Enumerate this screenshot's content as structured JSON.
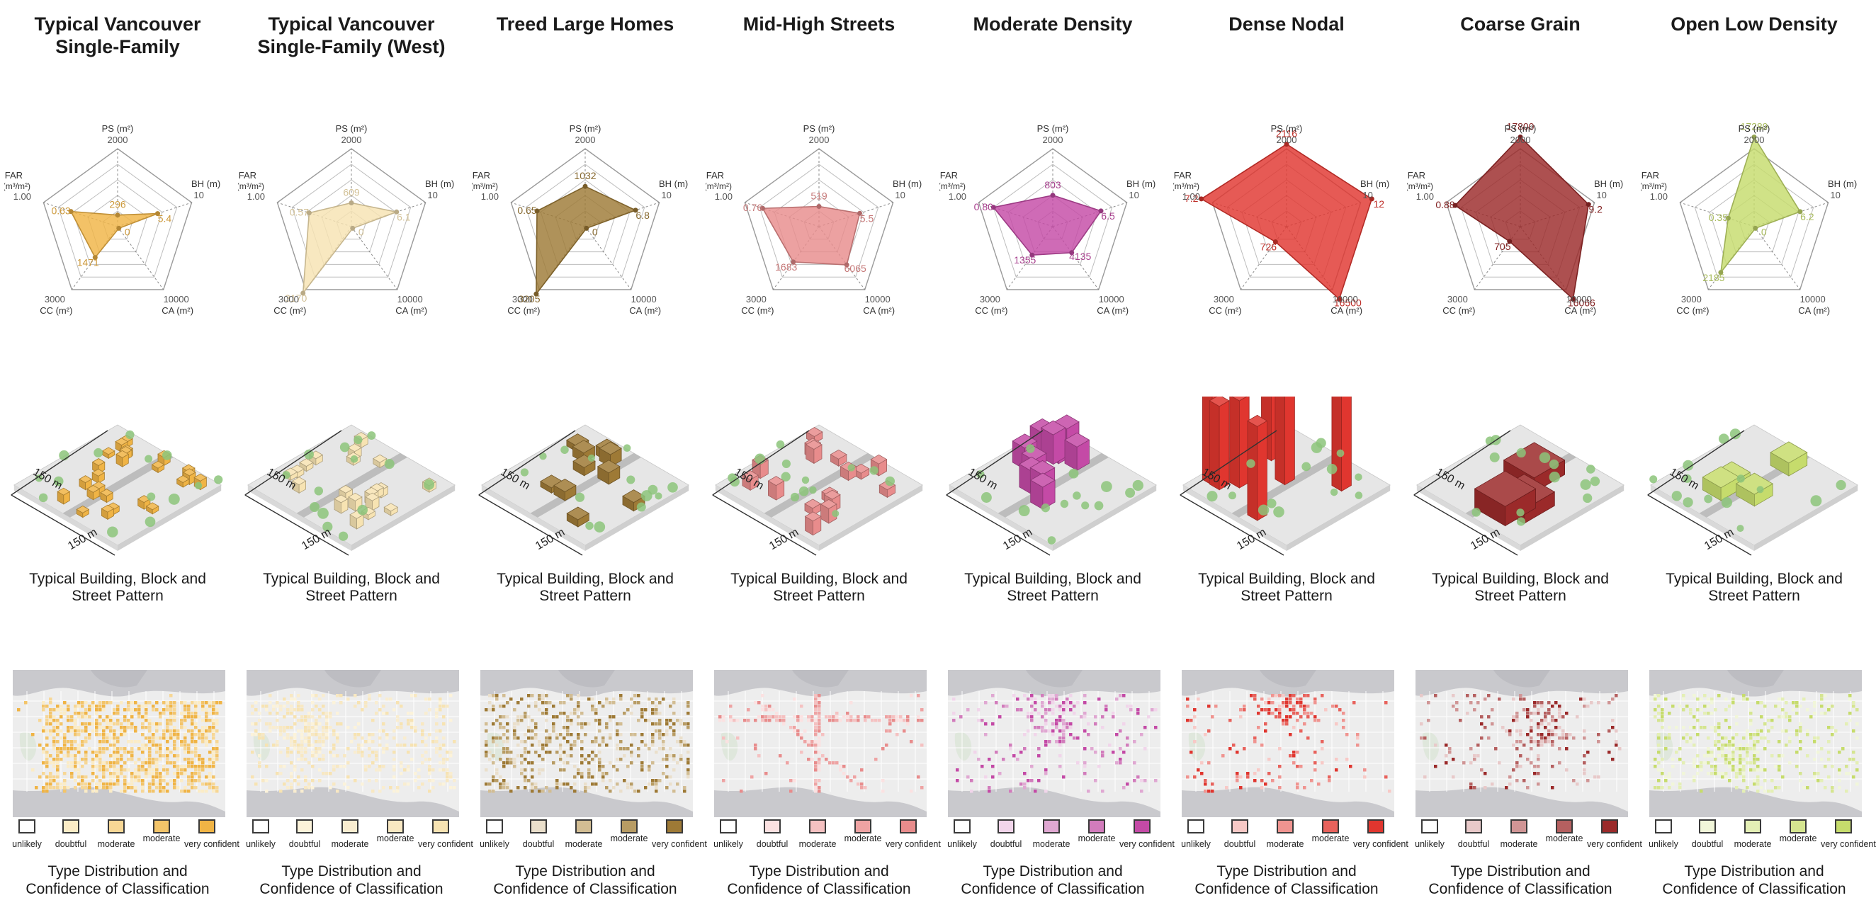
{
  "footprint_label": "150 m",
  "iso_caption": [
    "Typical Building, Block and",
    "Street Pattern"
  ],
  "map_caption": [
    "Type Distribution and",
    "Confidence of Classification"
  ],
  "legend_labels": [
    "unlikely",
    "doubtful",
    "moderate",
    "moderate",
    "very confident"
  ],
  "axes": {
    "ps": [
      "PS (m²)",
      "2000"
    ],
    "bh": [
      "BH (m)",
      "10"
    ],
    "ca": [
      "10000",
      "CA (m²)"
    ],
    "cc": [
      "3000",
      "CC (m²)"
    ],
    "far": [
      "FAR",
      "(m³/m²)",
      "1.00"
    ]
  },
  "types": [
    {
      "title": [
        "Typical Vancouver",
        "Single-Family"
      ],
      "color": "#f0b445",
      "legend_colors": [
        "#ffffff",
        "#fbecc6",
        "#f7d795",
        "#f3c469",
        "#f0b445"
      ],
      "radar": {
        "ps": 296,
        "bh": 5.4,
        "ca": 0,
        "cc": 1471,
        "far": 0.63
      },
      "labels": [
        "296",
        "5.4",
        "0",
        "1471",
        "0.63"
      ]
    },
    {
      "title": [
        "Typical Vancouver",
        "Single-Family (West)"
      ],
      "color": "#f7e3b2",
      "legend_colors": [
        "#ffffff",
        "#fcf3da",
        "#f9edd0",
        "#f8e8c2",
        "#f7e3b2"
      ],
      "radar": {
        "ps": 609,
        "bh": 6.1,
        "ca": 0,
        "cc": 3170,
        "far": 0.57
      },
      "labels": [
        "609",
        "6.1",
        "0",
        "3170",
        "0.57"
      ]
    },
    {
      "title": [
        "Treed Large Homes"
      ],
      "color": "#9e7a36",
      "legend_colors": [
        "#ffffff",
        "#eadfcb",
        "#d2bd93",
        "#b89c64",
        "#9e7a36"
      ],
      "radar": {
        "ps": 1032,
        "bh": 6.8,
        "ca": 0,
        "cc": 3205,
        "far": 0.65
      },
      "labels": [
        "1032",
        "6.8",
        "0",
        "3205",
        "0.65"
      ]
    },
    {
      "title": [
        "Mid-High Streets"
      ],
      "color": "#e88c8c",
      "legend_colors": [
        "#ffffff",
        "#fbe1e1",
        "#f5c1c1",
        "#eea3a3",
        "#e88c8c"
      ],
      "radar": {
        "ps": 519,
        "bh": 5.5,
        "ca": 6065,
        "cc": 1683,
        "far": 0.76
      },
      "labels": [
        "519",
        "5.5",
        "6065",
        "1683",
        "0.76"
      ]
    },
    {
      "title": [
        "Moderate Density"
      ],
      "color": "#c44aa6",
      "legend_colors": [
        "#ffffff",
        "#f1d5ea",
        "#e0a8d2",
        "#d27cbc",
        "#c44aa6"
      ],
      "radar": {
        "ps": 803,
        "bh": 6.5,
        "ca": 4135,
        "cc": 1355,
        "far": 0.8
      },
      "labels": [
        "803",
        "6.5",
        "4135",
        "1355",
        "0.80"
      ]
    },
    {
      "title": [
        "Dense Nodal"
      ],
      "color": "#e0362f",
      "legend_colors": [
        "#ffffff",
        "#f8c9c6",
        "#f09490",
        "#e8625c",
        "#e0362f"
      ],
      "radar": {
        "ps": 2116,
        "bh": 12,
        "ca": 16500,
        "cc": 726,
        "far": 7.2
      },
      "labels": [
        "2116",
        "12",
        "16500",
        "726",
        "7.2"
      ]
    },
    {
      "title": [
        "Coarse Grain"
      ],
      "color": "#9b2a2a",
      "legend_colors": [
        "#ffffff",
        "#e8c9c9",
        "#d09595",
        "#b56060",
        "#9b2a2a"
      ],
      "radar": {
        "ps": 17800,
        "bh": 9.2,
        "ca": 16066,
        "cc": 705,
        "far": 0.88
      },
      "labels": [
        "17800",
        "9.2",
        "16066",
        "705",
        "0.88"
      ]
    },
    {
      "title": [
        "Open Low Density"
      ],
      "color": "#c6dc6c",
      "legend_colors": [
        "#ffffff",
        "#f1f6d9",
        "#e4efb5",
        "#d5e590",
        "#c6dc6c"
      ],
      "radar": {
        "ps": 17289,
        "bh": 6.2,
        "ca": 0,
        "cc": 2185,
        "far": 0.35
      },
      "labels": [
        "17289",
        "6.2",
        "0",
        "2185",
        "0.35"
      ]
    }
  ]
}
